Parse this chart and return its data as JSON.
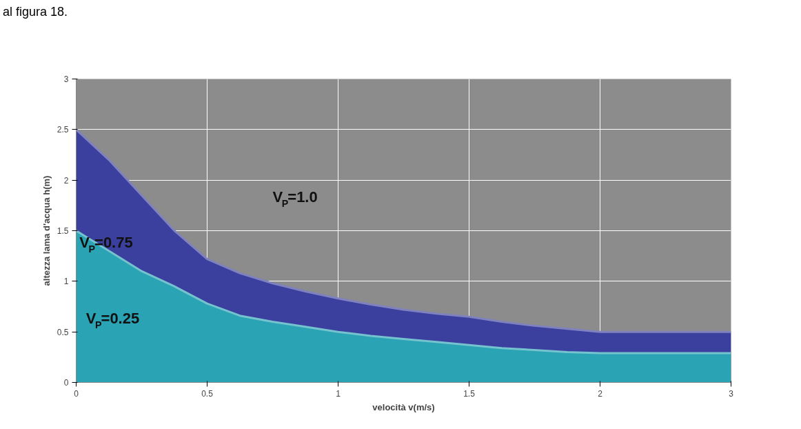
{
  "chart_data": {
    "type": "area",
    "xlabel": "velocità v(m/s)",
    "ylabel": "altezza lama d'acqua h(m)",
    "categories": [
      "0",
      null,
      null,
      null,
      "0.5",
      null,
      null,
      null,
      "1",
      null,
      null,
      null,
      "1.5",
      null,
      null,
      null,
      "2",
      null,
      null,
      null,
      "3"
    ],
    "series": [
      {
        "color": "#3b3f9e",
        "values": [
          2.5,
          2.2,
          1.85,
          1.5,
          1.22,
          1.08,
          0.98,
          0.9,
          0.83,
          0.77,
          0.72,
          0.68,
          0.65,
          0.6,
          0.56,
          0.53,
          0.5,
          0.5,
          0.5,
          0.5,
          0.5
        ]
      },
      {
        "color": "#2aa3b5",
        "values": [
          1.5,
          1.3,
          1.1,
          0.95,
          0.78,
          0.66,
          0.6,
          0.55,
          0.5,
          0.46,
          0.43,
          0.4,
          0.37,
          0.34,
          0.32,
          0.3,
          0.29,
          0.29,
          0.29,
          0.29,
          0.29
        ]
      }
    ],
    "ylim": [
      0,
      3
    ],
    "yticks": [
      0,
      0.5,
      1,
      1.5,
      2,
      2.5,
      3
    ],
    "grid": true,
    "annotations": [
      "V$_{P}$=1.0",
      "V$_{P}$=0.75",
      "V$_{P}$=0.25",
      "al figura 18."
    ]
  }
}
